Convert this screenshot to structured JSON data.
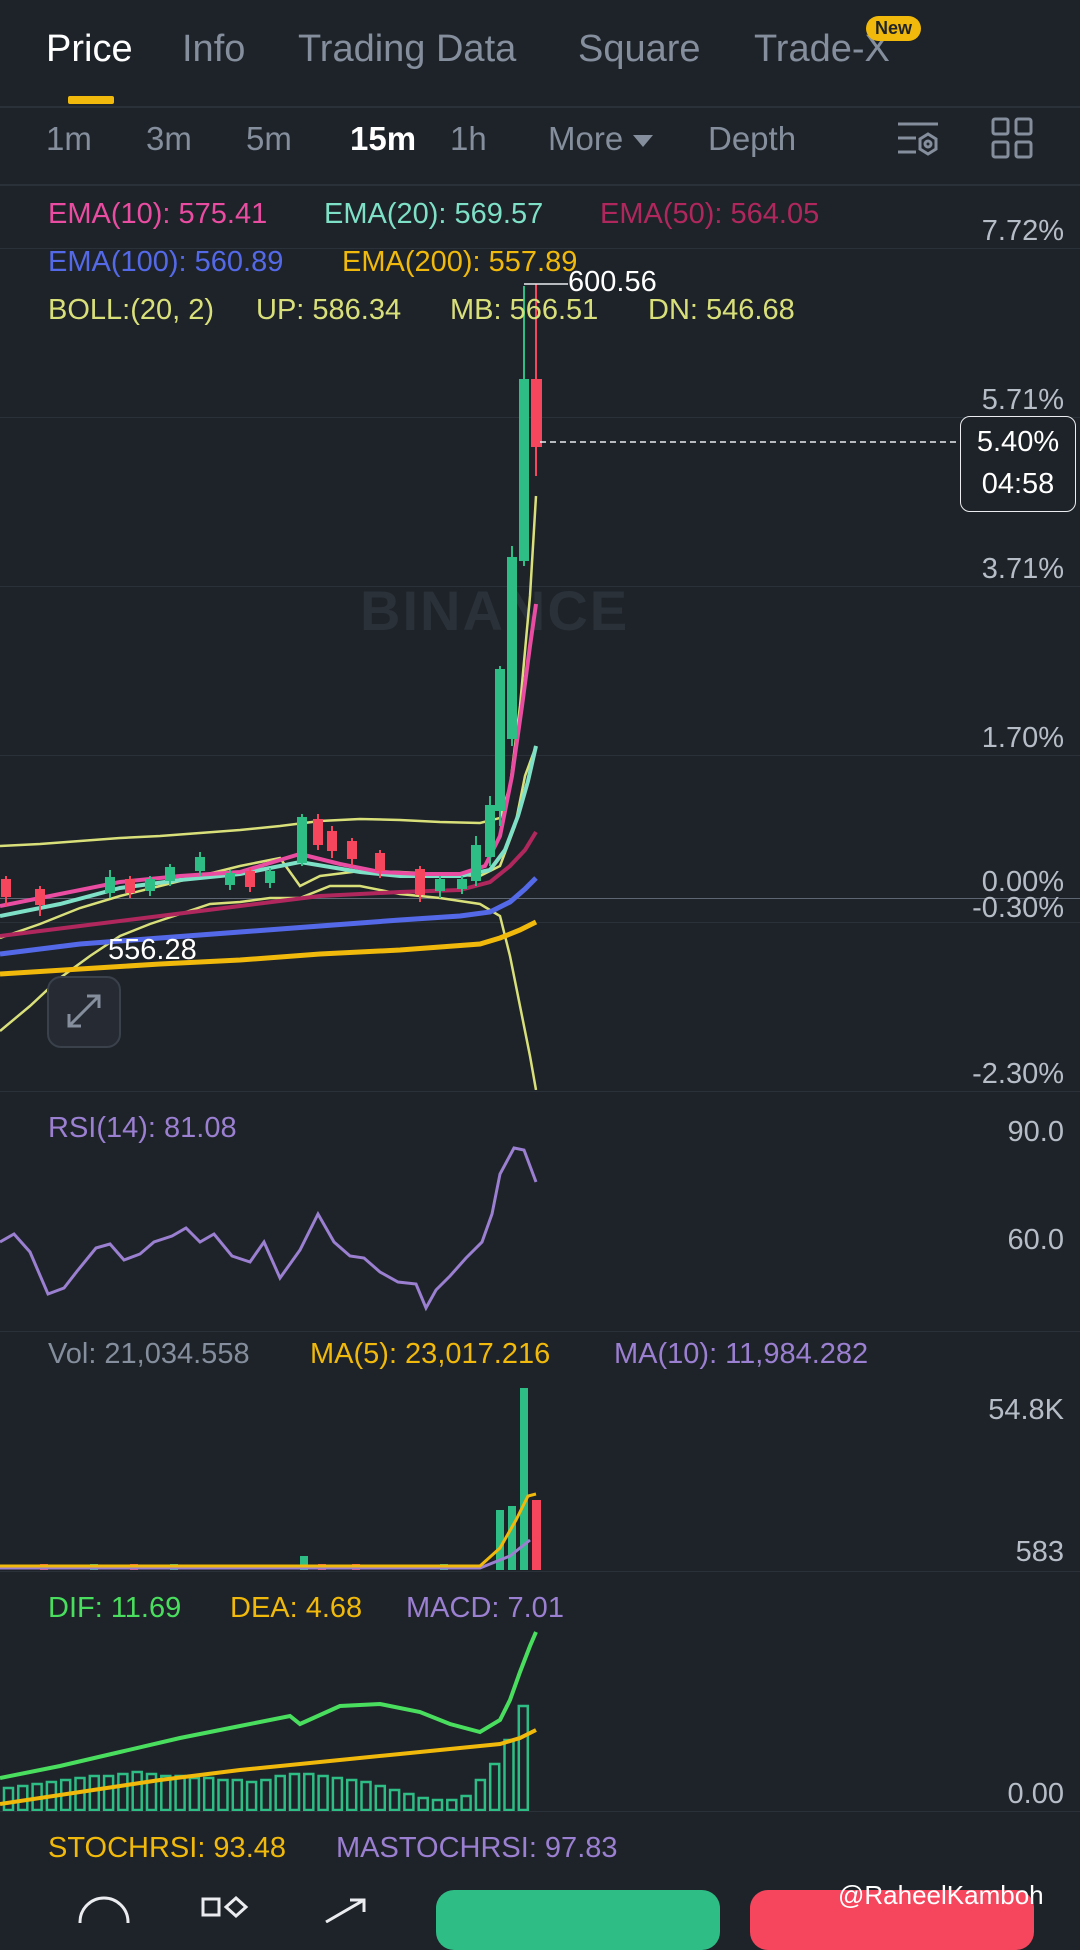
{
  "tabs": [
    "Price",
    "Info",
    "Trading Data",
    "Square",
    "Trade-X"
  ],
  "new_badge": "New",
  "intervals": [
    "1m",
    "3m",
    "5m",
    "15m",
    "1h"
  ],
  "more_label": "More",
  "depth_label": "Depth",
  "indicators": {
    "ema10": "EMA(10): 575.41",
    "ema20": "EMA(20): 569.57",
    "ema50": "EMA(50): 564.05",
    "ema100": "EMA(100): 560.89",
    "ema200": "EMA(200): 557.89",
    "boll": "BOLL:(20, 2)",
    "boll_up": "UP: 586.34",
    "boll_mb": "MB: 566.51",
    "boll_dn": "DN: 546.68"
  },
  "price_axis": [
    "7.72%",
    "5.71%",
    "3.71%",
    "1.70%",
    "0.00%",
    "-0.30%",
    "-2.30%"
  ],
  "high_label": "600.56",
  "low_label": "556.28",
  "current": {
    "pct": "5.40%",
    "countdown": "04:58"
  },
  "watermark": "BINANCE",
  "rsi": {
    "label": "RSI(14): 81.08",
    "axis": [
      "90.0",
      "60.0"
    ]
  },
  "volume": {
    "vol": "Vol: 21,034.558",
    "ma5": "MA(5): 23,017.216",
    "ma10": "MA(10): 11,984.282",
    "axis": [
      "54.8K",
      "583"
    ]
  },
  "macd": {
    "dif": "DIF: 11.69",
    "dea": "DEA: 4.68",
    "macd": "MACD: 7.01",
    "axis": [
      "0.00"
    ]
  },
  "stoch": {
    "stochrsi": "STOCHRSI: 93.48",
    "mastochrsi": "MASTOCHRSI: 97.83"
  },
  "credit": "@RaheelKamboh",
  "colors": {
    "bg": "#1e2329",
    "green": "#2ebd85",
    "red": "#f6465d",
    "ema10": "#e94ca1",
    "ema20": "#7ee0c6",
    "ema50": "#b0275e",
    "ema100": "#5469e8",
    "ema200": "#f0b90b",
    "boll": "#d9e07a",
    "rsi": "#9b7fd1",
    "dif": "#4ade5f",
    "dea": "#f0b90b"
  }
}
